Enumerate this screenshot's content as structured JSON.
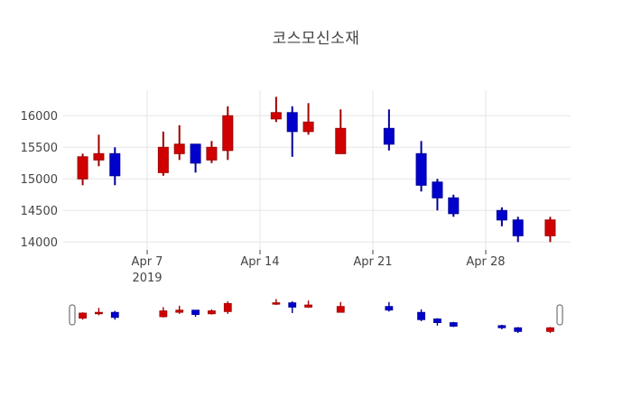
{
  "title": {
    "text": "코스모신소재"
  },
  "chart_data": {
    "type": "candlestick",
    "title": "코스모신소재",
    "legend": false,
    "grid": true,
    "x_axis": {
      "type": "date",
      "tick_labels": [
        "Apr 7",
        "Apr 14",
        "Apr 21",
        "Apr 28"
      ],
      "year_label": "2019",
      "tick_days": [
        0,
        7,
        14,
        21
      ]
    },
    "y_axis": {
      "tick_labels": [
        "16000",
        "15500",
        "15000",
        "14500",
        "14000"
      ],
      "ticks": [
        16000,
        15500,
        15000,
        14500,
        14000
      ],
      "range": [
        13870,
        16420
      ]
    },
    "colors": {
      "increasing": "#d10000",
      "increasing_line": "#a00000",
      "decreasing": "#0000cd",
      "decreasing_line": "#000099",
      "grid": "#e6e6e6",
      "axis_text": "#444444",
      "handle_border": "#555555",
      "background": "#ffffff"
    },
    "rangeslider": {
      "visible": true
    },
    "candles": [
      {
        "date": "Apr 3",
        "day": -4,
        "open": 15000,
        "high": 15400,
        "low": 14900,
        "close": 15350
      },
      {
        "date": "Apr 4",
        "day": -3,
        "open": 15300,
        "high": 15700,
        "low": 15200,
        "close": 15400
      },
      {
        "date": "Apr 5",
        "day": -2,
        "open": 15400,
        "high": 15500,
        "low": 14900,
        "close": 15050
      },
      {
        "date": "Apr 8",
        "day": 1,
        "open": 15100,
        "high": 15750,
        "low": 15050,
        "close": 15500
      },
      {
        "date": "Apr 9",
        "day": 2,
        "open": 15400,
        "high": 15850,
        "low": 15300,
        "close": 15550
      },
      {
        "date": "Apr 10",
        "day": 3,
        "open": 15550,
        "high": 15550,
        "low": 15100,
        "close": 15250
      },
      {
        "date": "Apr 11",
        "day": 4,
        "open": 15300,
        "high": 15600,
        "low": 15250,
        "close": 15500
      },
      {
        "date": "Apr 12",
        "day": 5,
        "open": 15450,
        "high": 16150,
        "low": 15300,
        "close": 16000
      },
      {
        "date": "Apr 15",
        "day": 8,
        "open": 15950,
        "high": 16300,
        "low": 15900,
        "close": 16050
      },
      {
        "date": "Apr 16",
        "day": 9,
        "open": 16050,
        "high": 16150,
        "low": 15350,
        "close": 15750
      },
      {
        "date": "Apr 17",
        "day": 10,
        "open": 15750,
        "high": 16200,
        "low": 15700,
        "close": 15900
      },
      {
        "date": "Apr 19",
        "day": 12,
        "open": 15400,
        "high": 16100,
        "low": 15400,
        "close": 15800
      },
      {
        "date": "Apr 22",
        "day": 15,
        "open": 15800,
        "high": 16100,
        "low": 15450,
        "close": 15550
      },
      {
        "date": "Apr 24",
        "day": 17,
        "open": 15400,
        "high": 15600,
        "low": 14800,
        "close": 14900
      },
      {
        "date": "Apr 25",
        "day": 18,
        "open": 14950,
        "high": 15000,
        "low": 14500,
        "close": 14700
      },
      {
        "date": "Apr 26",
        "day": 19,
        "open": 14700,
        "high": 14750,
        "low": 14400,
        "close": 14450
      },
      {
        "date": "Apr 29",
        "day": 22,
        "open": 14500,
        "high": 14550,
        "low": 14250,
        "close": 14350
      },
      {
        "date": "Apr 30",
        "day": 23,
        "open": 14350,
        "high": 14400,
        "low": 14000,
        "close": 14100
      },
      {
        "date": "May 2",
        "day": 25,
        "open": 14100,
        "high": 14400,
        "low": 14000,
        "close": 14350
      }
    ]
  }
}
